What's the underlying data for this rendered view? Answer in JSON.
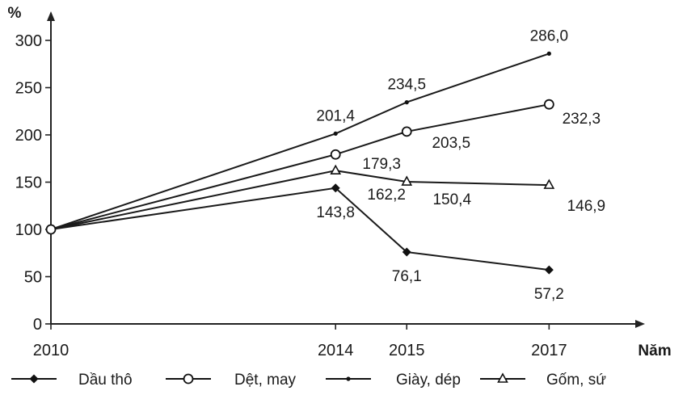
{
  "chart_data": {
    "type": "line",
    "title": "",
    "xlabel": "Năm",
    "ylabel": "%",
    "x": [
      2010,
      2014,
      2015,
      2017
    ],
    "x_tick_labels": [
      "2010",
      "2014",
      "2015",
      "2017"
    ],
    "ylim": [
      0,
      300
    ],
    "y_ticks": [
      0,
      50,
      100,
      150,
      200,
      250,
      300
    ],
    "grid": false,
    "legend_position": "bottom",
    "series": [
      {
        "name": "Dầu thô",
        "marker": "diamond",
        "values": [
          100,
          143.8,
          76.1,
          57.2
        ],
        "labels": [
          "",
          "143,8",
          "76,1",
          "57,2"
        ]
      },
      {
        "name": "Dệt, may",
        "marker": "circle",
        "values": [
          100,
          179.3,
          203.5,
          232.3
        ],
        "labels": [
          "",
          "179,3",
          "203,5",
          "232,3"
        ]
      },
      {
        "name": "Giày, dép",
        "marker": "dot",
        "values": [
          100,
          201.4,
          234.5,
          286.0
        ],
        "labels": [
          "",
          "201,4",
          "234,5",
          "286,0"
        ]
      },
      {
        "name": "Gốm, sứ",
        "marker": "triangle",
        "values": [
          100,
          162.2,
          150.4,
          146.9
        ],
        "labels": [
          "",
          "162,2",
          "150,4",
          "146,9"
        ]
      }
    ]
  }
}
